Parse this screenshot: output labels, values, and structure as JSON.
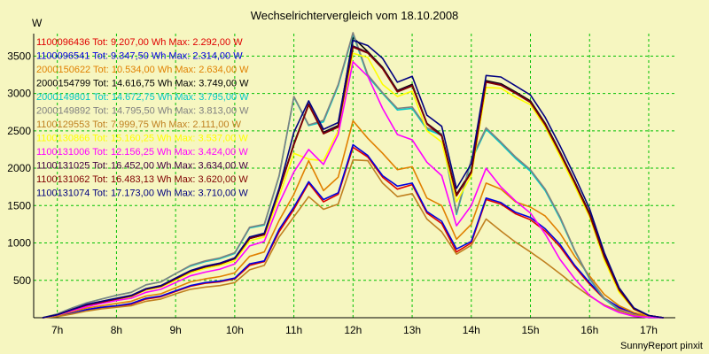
{
  "chart_data": {
    "type": "line",
    "title": "Wechselrichtervergleich vom 18.10.2008",
    "ylabel": "W",
    "xlabel": "",
    "credit": "SunnyReport pinxit",
    "ylim": [
      0,
      3800
    ],
    "xlim": [
      6.6,
      17.45
    ],
    "yticks": [
      500,
      1000,
      1500,
      2000,
      2500,
      3000,
      3500
    ],
    "xticks": [
      {
        "v": 7,
        "label": "7h"
      },
      {
        "v": 8,
        "label": "8h"
      },
      {
        "v": 9,
        "label": "9h"
      },
      {
        "v": 10,
        "label": "10h"
      },
      {
        "v": 11,
        "label": "11h"
      },
      {
        "v": 12,
        "label": "12h"
      },
      {
        "v": 13,
        "label": "13h"
      },
      {
        "v": 14,
        "label": "14h"
      },
      {
        "v": 15,
        "label": "15h"
      },
      {
        "v": 16,
        "label": "16h"
      },
      {
        "v": 17,
        "label": "17h"
      }
    ],
    "grid": true,
    "legend_position": "top-left",
    "x": [
      6.75,
      7,
      7.25,
      7.5,
      7.75,
      8,
      8.25,
      8.5,
      8.75,
      9,
      9.25,
      9.5,
      9.75,
      10,
      10.25,
      10.5,
      10.75,
      11,
      11.25,
      11.5,
      11.75,
      12,
      12.25,
      12.5,
      12.75,
      13,
      13.25,
      13.5,
      13.75,
      14,
      14.25,
      14.5,
      14.75,
      15,
      15.25,
      15.5,
      15.75,
      16,
      16.25,
      16.5,
      16.75,
      17,
      17.25
    ],
    "series": [
      {
        "name": "1100096436 Tot: 9.207,00 Wh Max: 2.292,00 W",
        "color": "#e00000",
        "values": [
          0,
          20,
          60,
          100,
          130,
          150,
          180,
          250,
          280,
          350,
          420,
          460,
          480,
          520,
          700,
          750,
          1150,
          1450,
          1800,
          1550,
          1650,
          2280,
          2150,
          1880,
          1720,
          1780,
          1400,
          1260,
          880,
          1000,
          1580,
          1520,
          1390,
          1310,
          1160,
          950,
          680,
          450,
          250,
          130,
          60,
          20,
          0
        ]
      },
      {
        "name": "1100096541 Tot: 9.347,50 Wh Max: 2.314,00 W",
        "color": "#0000e0",
        "values": [
          0,
          20,
          60,
          110,
          140,
          160,
          190,
          260,
          290,
          360,
          430,
          470,
          490,
          530,
          720,
          760,
          1180,
          1480,
          1820,
          1580,
          1670,
          2314,
          2170,
          1900,
          1760,
          1800,
          1420,
          1290,
          920,
          1020,
          1600,
          1540,
          1410,
          1340,
          1190,
          980,
          700,
          470,
          260,
          140,
          60,
          20,
          0
        ]
      },
      {
        "name": "2000150622 Tot: 10.534,00 Wh Max: 2.634,00 W",
        "color": "#e08000",
        "values": [
          0,
          30,
          80,
          130,
          160,
          190,
          220,
          290,
          320,
          400,
          480,
          520,
          550,
          600,
          820,
          880,
          1300,
          1650,
          2100,
          1700,
          1880,
          2634,
          2400,
          2200,
          1980,
          2020,
          1600,
          1500,
          1050,
          1250,
          1800,
          1720,
          1550,
          1480,
          1360,
          1130,
          820,
          560,
          310,
          160,
          70,
          20,
          0
        ]
      },
      {
        "name": "2000154799 Tot: 14.616,75 Wh Max: 3.749,00 W",
        "color": "#000000",
        "values": [
          0,
          40,
          110,
          170,
          210,
          250,
          290,
          380,
          420,
          520,
          620,
          680,
          720,
          790,
          1060,
          1120,
          1700,
          2330,
          2850,
          2480,
          2570,
          3749,
          3560,
          3350,
          3040,
          3120,
          2600,
          2450,
          1650,
          1960,
          3170,
          3130,
          3020,
          2900,
          2600,
          2220,
          1820,
          1400,
          830,
          380,
          120,
          30,
          0
        ]
      },
      {
        "name": "2000149801 Tot: 14.672,75 Wh Max: 3.795,00 W",
        "color": "#00c8c8",
        "values": [
          0,
          50,
          130,
          200,
          250,
          300,
          340,
          440,
          480,
          590,
          690,
          750,
          790,
          860,
          1200,
          1240,
          1890,
          2950,
          2570,
          2620,
          3100,
          3795,
          3230,
          3000,
          2780,
          2800,
          2520,
          2440,
          1380,
          2100,
          2520,
          2330,
          2130,
          1960,
          1700,
          1330,
          890,
          520,
          250,
          100,
          30,
          0,
          0
        ]
      },
      {
        "name": "2000149892 Tot: 14.795,50 Wh Max: 3.813,00 W",
        "color": "#808080",
        "values": [
          0,
          50,
          130,
          200,
          250,
          300,
          340,
          440,
          480,
          590,
          700,
          760,
          800,
          870,
          1210,
          1250,
          1900,
          2960,
          2580,
          2640,
          3120,
          3813,
          3250,
          3010,
          2800,
          2820,
          2540,
          2460,
          1400,
          2120,
          2540,
          2350,
          2150,
          1980,
          1720,
          1350,
          900,
          530,
          260,
          110,
          30,
          0,
          0
        ]
      },
      {
        "name": "1100129553 Tot: 7.999,75 Wh Max: 2.111,00 W",
        "color": "#c08020",
        "values": [
          0,
          15,
          50,
          90,
          120,
          140,
          160,
          220,
          250,
          320,
          380,
          410,
          430,
          470,
          640,
          700,
          1080,
          1350,
          1620,
          1450,
          1520,
          2111,
          2100,
          1800,
          1620,
          1660,
          1320,
          1150,
          850,
          970,
          1320,
          1160,
          1010,
          880,
          740,
          590,
          430,
          290,
          170,
          90,
          40,
          10,
          0
        ]
      },
      {
        "name": "1100130866 Tot: 15.160,25 Wh Max: 3.537,00 W",
        "color": "#ffff00",
        "values": [
          0,
          35,
          100,
          160,
          200,
          240,
          280,
          370,
          410,
          500,
          600,
          660,
          700,
          760,
          1030,
          1080,
          1620,
          2200,
          2120,
          2100,
          2500,
          3537,
          3480,
          3120,
          2960,
          3030,
          2500,
          2350,
          1550,
          1900,
          3080,
          3070,
          2950,
          2850,
          2550,
          2160,
          1760,
          1350,
          770,
          340,
          110,
          25,
          0
        ]
      },
      {
        "name": "1100131006 Tot: 12.156,25 Wh Max: 3.424,00 W",
        "color": "#ff00ff",
        "values": [
          0,
          35,
          95,
          150,
          190,
          230,
          260,
          340,
          380,
          470,
          560,
          610,
          650,
          720,
          960,
          1020,
          1530,
          1950,
          2250,
          2050,
          2450,
          3424,
          3230,
          2800,
          2450,
          2380,
          2080,
          1900,
          1230,
          1500,
          2000,
          1750,
          1560,
          1400,
          1120,
          780,
          520,
          300,
          160,
          70,
          20,
          5,
          0
        ]
      },
      {
        "name": "1100131025 Tot: 16.452,00 Wh Max: 3.634,00 W",
        "color": "#400040",
        "values": [
          0,
          40,
          110,
          170,
          210,
          250,
          290,
          380,
          420,
          520,
          620,
          680,
          720,
          790,
          1060,
          1110,
          1700,
          2320,
          2860,
          2470,
          2560,
          3634,
          3550,
          3340,
          3030,
          3110,
          2600,
          2440,
          1640,
          1950,
          3160,
          3120,
          3010,
          2890,
          2590,
          2210,
          1810,
          1390,
          820,
          380,
          120,
          30,
          0
        ]
      },
      {
        "name": "1100131062 Tot: 16.483,13 Wh Max: 3.620,00 W",
        "color": "#800000",
        "values": [
          0,
          40,
          110,
          170,
          210,
          250,
          290,
          380,
          420,
          520,
          620,
          680,
          720,
          790,
          1060,
          1110,
          1700,
          2310,
          2850,
          2460,
          2550,
          3620,
          3540,
          3330,
          3020,
          3100,
          2590,
          2430,
          1630,
          1940,
          3150,
          3110,
          3000,
          2880,
          2580,
          2200,
          1800,
          1380,
          810,
          370,
          115,
          28,
          0
        ]
      },
      {
        "name": "1100131074 Tot: 17.173,00 Wh Max: 3.710,00 W",
        "color": "#000080",
        "values": [
          0,
          40,
          110,
          180,
          220,
          260,
          300,
          390,
          430,
          530,
          630,
          690,
          730,
          800,
          1080,
          1130,
          1730,
          2480,
          2900,
          2520,
          2610,
          3710,
          3640,
          3470,
          3150,
          3230,
          2710,
          2560,
          1730,
          2060,
          3240,
          3220,
          3100,
          2980,
          2680,
          2300,
          1890,
          1460,
          870,
          400,
          130,
          30,
          0
        ]
      }
    ]
  }
}
